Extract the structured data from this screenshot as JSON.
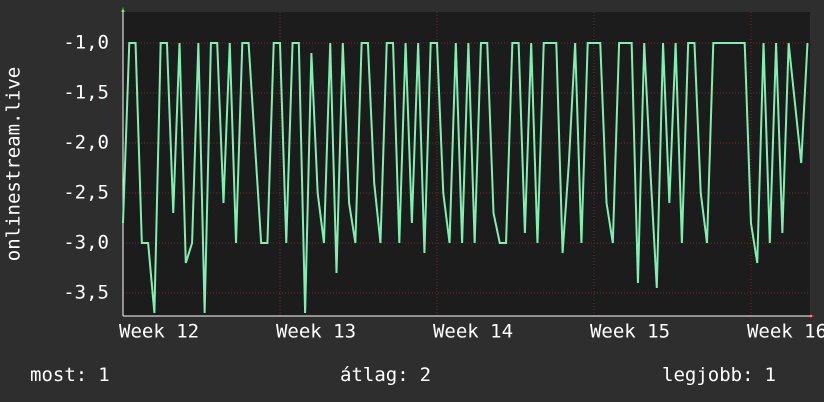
{
  "chart_data": {
    "type": "line",
    "y_label": "onlinestream.live",
    "xlim": [
      12,
      16.376
    ],
    "xticks": [
      {
        "value": 12,
        "label": "Week 12"
      },
      {
        "value": 13,
        "label": "Week 13"
      },
      {
        "value": 14,
        "label": "Week 14"
      },
      {
        "value": 15,
        "label": "Week 15"
      },
      {
        "value": 16,
        "label": "Week 16"
      }
    ],
    "ylim": [
      -3.73,
      -0.69
    ],
    "yticks": [
      {
        "value": -3.5,
        "label": "-3,5"
      },
      {
        "value": -3,
        "label": "-3,0"
      },
      {
        "value": -2.5,
        "label": "-2,5"
      },
      {
        "value": -2,
        "label": "-2,0"
      },
      {
        "value": -1.5,
        "label": "-1,5"
      },
      {
        "value": -1,
        "label": "-1,0"
      }
    ],
    "grid": true,
    "x": [
      12,
      12.04,
      12.08,
      12.12,
      12.16,
      12.2,
      12.24,
      12.28,
      12.32,
      12.36,
      12.4,
      12.44,
      12.48,
      12.52,
      12.56,
      12.6,
      12.64,
      12.68,
      12.72,
      12.76,
      12.8,
      12.84,
      12.88,
      12.92,
      12.96,
      13,
      13.04,
      13.08,
      13.12,
      13.16,
      13.2,
      13.24,
      13.28,
      13.32,
      13.36,
      13.4,
      13.44,
      13.48,
      13.52,
      13.56,
      13.6,
      13.64,
      13.68,
      13.72,
      13.76,
      13.8,
      13.84,
      13.88,
      13.92,
      13.96,
      14,
      14.04,
      14.08,
      14.12,
      14.16,
      14.2,
      14.24,
      14.28,
      14.32,
      14.36,
      14.4,
      14.44,
      14.48,
      14.52,
      14.56,
      14.6,
      14.64,
      14.68,
      14.72,
      14.76,
      14.8,
      14.84,
      14.88,
      14.92,
      14.96,
      15,
      15.04,
      15.08,
      15.12,
      15.16,
      15.2,
      15.24,
      15.28,
      15.32,
      15.36,
      15.4,
      15.44,
      15.48,
      15.52,
      15.56,
      15.6,
      15.64,
      15.68,
      15.72,
      15.76,
      15.8,
      15.84,
      15.88,
      15.92,
      15.96,
      16,
      16.04,
      16.08,
      16.12,
      16.16,
      16.2,
      16.24,
      16.28,
      16.32,
      16.36
    ],
    "series": [
      {
        "color": "#7ff0b0",
        "values": [
          -2.8,
          -1,
          -1,
          -3,
          -3,
          -3.7,
          -1,
          -1,
          -2.7,
          -1,
          -3.2,
          -3,
          -1,
          -3.7,
          -1,
          -1,
          -2.6,
          -1,
          -3,
          -1,
          -1,
          -2,
          -3,
          -3,
          -1,
          -1,
          -3,
          -1,
          -1,
          -3.7,
          -1.1,
          -2.5,
          -3,
          -1,
          -3.3,
          -1,
          -2.6,
          -3,
          -1,
          -1,
          -2.4,
          -3,
          -1,
          -1,
          -3,
          -1,
          -2.8,
          -1,
          -3.1,
          -1,
          -1,
          -2.5,
          -3,
          -1,
          -3,
          -1,
          -3,
          -1,
          -1,
          -2.7,
          -3,
          -3,
          -1,
          -1,
          -2.9,
          -1,
          -3,
          -1,
          -1,
          -1,
          -3.1,
          -2.2,
          -1,
          -3,
          -1,
          -1,
          -1,
          -2.6,
          -3,
          -1,
          -1,
          -1,
          -3.4,
          -1,
          -2.3,
          -3.45,
          -1,
          -2.6,
          -1,
          -3,
          -1,
          -1,
          -2.5,
          -3,
          -1,
          -1,
          -1,
          -1,
          -1,
          -1,
          -2.8,
          -3.2,
          -1,
          -3,
          -1,
          -2.9,
          -1,
          -1.6,
          -2.2,
          -1
        ]
      }
    ],
    "stats": [
      {
        "label": "most:",
        "value": 1
      },
      {
        "label": "átlag:",
        "value": 2
      },
      {
        "label": "legjobb:",
        "value": 1
      }
    ]
  }
}
